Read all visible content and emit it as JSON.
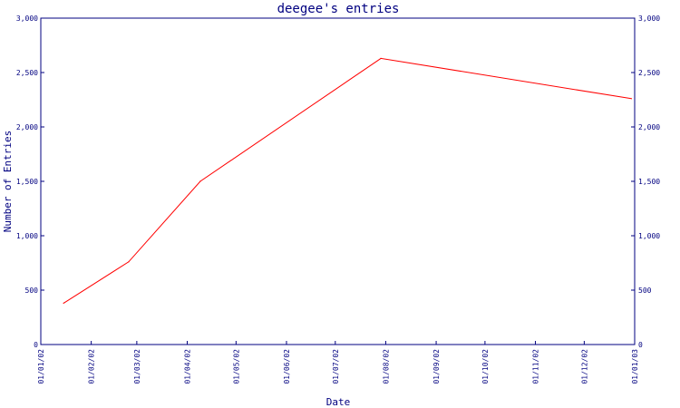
{
  "chart_data": {
    "type": "line",
    "title": "deegee's entries",
    "xlabel": "Date",
    "ylabel": "Number of Entries",
    "ylim": [
      0,
      3000
    ],
    "xlim": [
      "2002-01-01",
      "2003-01-01"
    ],
    "y_ticks": [
      0,
      500,
      1000,
      1500,
      2000,
      2500,
      3000
    ],
    "y_tick_labels": [
      "0",
      "500",
      "1,000",
      "1,500",
      "2,000",
      "2,500",
      "3,000"
    ],
    "x_ticks": [
      "2002-01-01",
      "2002-02-01",
      "2002-03-01",
      "2002-04-01",
      "2002-05-01",
      "2002-06-01",
      "2002-07-01",
      "2002-08-01",
      "2002-09-01",
      "2002-10-01",
      "2002-11-01",
      "2002-12-01",
      "2003-01-01"
    ],
    "x_tick_labels": [
      "01/01/02",
      "01/02/02",
      "01/03/02",
      "01/04/02",
      "01/05/02",
      "01/06/02",
      "01/07/02",
      "01/08/02",
      "01/09/02",
      "01/10/02",
      "01/11/02",
      "01/12/02",
      "01/01/03"
    ],
    "right_axis": true,
    "grid": false,
    "colors": {
      "axis": "#000080",
      "line": "#ff0000",
      "background": "#ffffff"
    },
    "series": [
      {
        "x": [
          "2002-01-15",
          "2002-02-24",
          "2002-04-09",
          "2002-07-29",
          "2002-12-30"
        ],
        "values": [
          380,
          760,
          1500,
          2630,
          2260
        ]
      }
    ]
  }
}
